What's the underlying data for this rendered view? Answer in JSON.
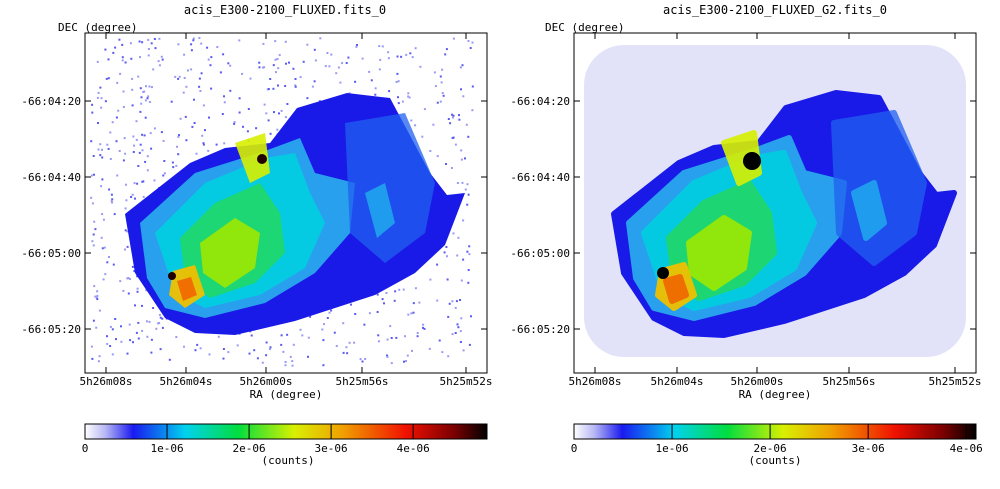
{
  "chart_data": [
    {
      "type": "heatmap",
      "title": "acis_E300-2100_FLUXED.fits_0",
      "xlabel": "RA (degree)",
      "ylabel": "DEC (degree)",
      "x_ticks": [
        "5h26m08s",
        "5h26m04s",
        "5h26m00s",
        "5h25m56s",
        "5h25m52s"
      ],
      "y_ticks": [
        "-66:04:20",
        "-66:04:40",
        "-66:05:00",
        "-66:05:20"
      ],
      "colorbar": {
        "label": "(counts)",
        "ticks": [
          "0",
          "1e-06",
          "2e-06",
          "3e-06",
          "4e-06"
        ],
        "tick_values": [
          0,
          1e-06,
          2e-06,
          3e-06,
          4e-06
        ],
        "range": [
          0,
          4.9e-06
        ]
      },
      "style": "noisy"
    },
    {
      "type": "heatmap",
      "title": "acis_E300-2100_FLUXED_G2.fits_0",
      "xlabel": "RA (degree)",
      "ylabel": "DEC (degree)",
      "x_ticks": [
        "5h26m08s",
        "5h26m04s",
        "5h26m00s",
        "5h25m56s",
        "5h25m52s"
      ],
      "y_ticks": [
        "-66:04:20",
        "-66:04:40",
        "-66:05:00",
        "-66:05:20"
      ],
      "colorbar": {
        "label": "(counts)",
        "ticks": [
          "0",
          "1e-06",
          "2e-06",
          "3e-06",
          "4e-06"
        ],
        "tick_values": [
          0,
          1e-06,
          2e-06,
          3e-06,
          4e-06
        ],
        "range": [
          0,
          4.1e-06
        ]
      },
      "style": "smooth"
    }
  ]
}
